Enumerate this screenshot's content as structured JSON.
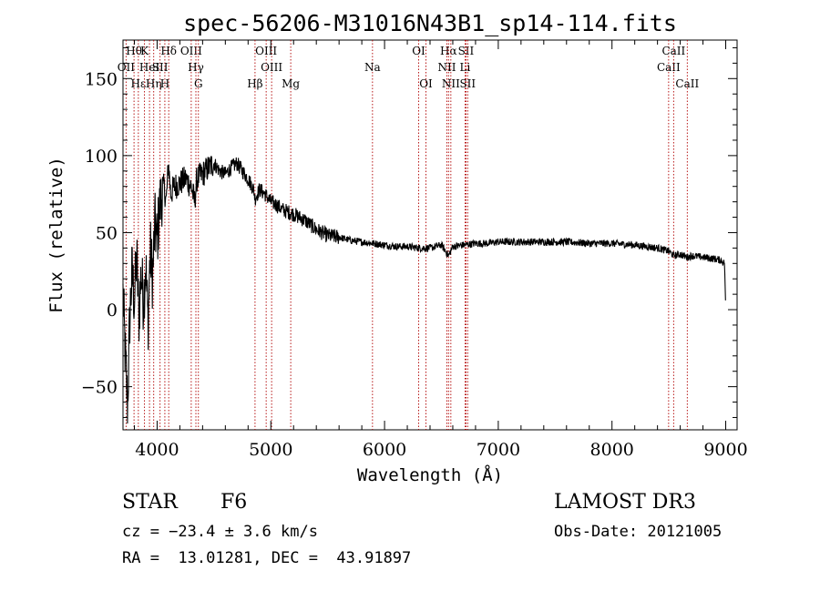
{
  "chart_data": {
    "type": "line",
    "title": "spec-56206-M31016N43B1_sp14-114.fits",
    "xlabel": "Wavelength (Å)",
    "ylabel": "Flux (relative)",
    "xlim": [
      3700,
      9100
    ],
    "ylim": [
      -78,
      175
    ],
    "xticks": [
      4000,
      5000,
      6000,
      7000,
      8000,
      9000
    ],
    "yticks": [
      -50,
      0,
      50,
      100,
      150
    ],
    "xticklabels": [
      "4000",
      "5000",
      "6000",
      "7000",
      "8000",
      "9000"
    ],
    "yticklabels": [
      "−50",
      "0",
      "50",
      "100",
      "150"
    ],
    "series": [
      {
        "name": "flux",
        "x": [
          3700,
          3720,
          3740,
          3760,
          3780,
          3800,
          3820,
          3840,
          3860,
          3880,
          3900,
          3920,
          3940,
          3960,
          3980,
          4000,
          4020,
          4040,
          4060,
          4080,
          4100,
          4120,
          4150,
          4200,
          4250,
          4300,
          4330,
          4350,
          4400,
          4450,
          4500,
          4550,
          4600,
          4650,
          4700,
          4750,
          4800,
          4850,
          4861,
          4900,
          4950,
          5000,
          5050,
          5100,
          5200,
          5300,
          5400,
          5500,
          5600,
          5700,
          5800,
          5900,
          6000,
          6100,
          6200,
          6300,
          6400,
          6500,
          6563,
          6600,
          6700,
          6800,
          6900,
          7000,
          7200,
          7400,
          7600,
          7800,
          8000,
          8200,
          8400,
          8500,
          8542,
          8600,
          8662,
          8700,
          8800,
          8900,
          8960,
          8990,
          9000
        ],
        "y": [
          10,
          -30,
          -62,
          -5,
          25,
          5,
          35,
          -5,
          25,
          5,
          30,
          -10,
          40,
          20,
          55,
          45,
          65,
          75,
          80,
          70,
          95,
          75,
          80,
          82,
          85,
          80,
          70,
          85,
          88,
          92,
          95,
          90,
          88,
          92,
          95,
          90,
          85,
          78,
          72,
          78,
          75,
          70,
          68,
          65,
          62,
          58,
          52,
          48,
          47,
          45,
          44,
          43,
          42,
          41,
          41,
          40,
          40,
          42,
          35,
          41,
          42,
          43,
          43,
          44,
          44,
          44,
          44,
          43,
          43,
          42,
          40,
          38,
          35,
          36,
          34,
          35,
          34,
          33,
          32,
          30,
          0
        ]
      }
    ],
    "lines": [
      {
        "label": "Hθ",
        "x": 3797,
        "row": 0
      },
      {
        "label": "OII",
        "x": 3727,
        "row": 1
      },
      {
        "label": "Hε",
        "x": 3835,
        "row": 2
      },
      {
        "label": "K",
        "x": 3889,
        "row": 0
      },
      {
        "label": "Hη",
        "x": 3970,
        "row": 2
      },
      {
        "label": "HeI",
        "x": 3933,
        "row": 1
      },
      {
        "label": "SII",
        "x": 4026,
        "row": 1
      },
      {
        "label": "H",
        "x": 4068,
        "row": 2
      },
      {
        "label": "Hδ",
        "x": 4102,
        "row": 0
      },
      {
        "label": "OIII",
        "x": 4300,
        "row": 0
      },
      {
        "label": "Hγ",
        "x": 4341,
        "row": 1
      },
      {
        "label": "G",
        "x": 4363,
        "row": 2
      },
      {
        "label": "Hβ",
        "x": 4861,
        "row": 2
      },
      {
        "label": "OIII",
        "x": 4959,
        "row": 0
      },
      {
        "label": "OIII",
        "x": 5007,
        "row": 1
      },
      {
        "label": "Mg",
        "x": 5175,
        "row": 2
      },
      {
        "label": "Na",
        "x": 5894,
        "row": 1
      },
      {
        "label": "OI",
        "x": 6300,
        "row": 0
      },
      {
        "label": "OI",
        "x": 6364,
        "row": 2
      },
      {
        "label": "Hα",
        "x": 6563,
        "row": 0
      },
      {
        "label": "NII",
        "x": 6548,
        "row": 1
      },
      {
        "label": "NII",
        "x": 6583,
        "row": 2
      },
      {
        "label": "SII",
        "x": 6716,
        "row": 0
      },
      {
        "label": "Li",
        "x": 6708,
        "row": 1
      },
      {
        "label": "SII",
        "x": 6731,
        "row": 2
      },
      {
        "label": "CaII",
        "x": 8498,
        "row": 1
      },
      {
        "label": "CaII",
        "x": 8542,
        "row": 0
      },
      {
        "label": "CaII",
        "x": 8662,
        "row": 2
      }
    ]
  },
  "info": {
    "class_label": "STAR",
    "subclass": "F6",
    "survey": "LAMOST DR3",
    "cz": "cz = −23.4 ± 3.6 km/s",
    "obs_date": "Obs-Date: 20121005",
    "coords": "RA =  13.01281, DEC =  43.91897"
  }
}
